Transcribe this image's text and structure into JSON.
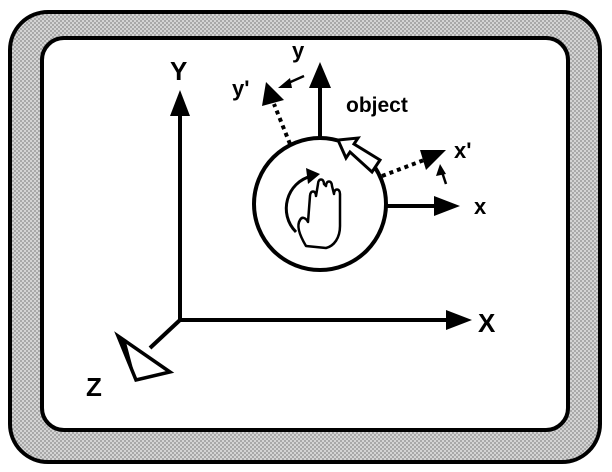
{
  "labels": {
    "world_y": "Y",
    "world_x": "X",
    "world_z": "Z",
    "object_y": "y",
    "object_x": "x",
    "rotated_y": "y'",
    "rotated_x": "x'",
    "object": "object"
  },
  "icons": {
    "hand": "hand-icon",
    "rotation": "rotation-arrow-icon"
  },
  "colors": {
    "frame_dots": "#b8b8b8",
    "ink": "#000000",
    "panel": "#ffffff"
  }
}
